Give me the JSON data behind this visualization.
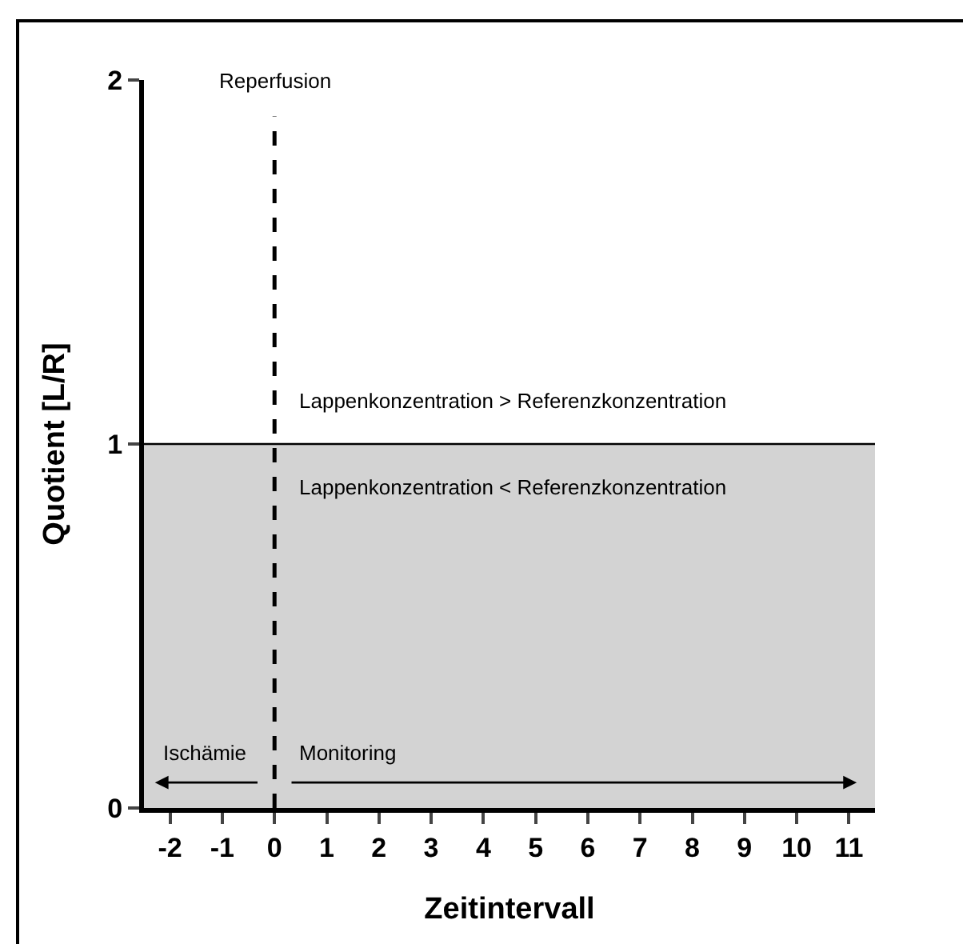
{
  "chart_data": {
    "type": "area",
    "xlabel": "Zeitintervall",
    "ylabel": "Quotient [L/R]",
    "xlim": [
      -2.5,
      11.5
    ],
    "xticks": [
      -2,
      -1,
      0,
      1,
      2,
      3,
      4,
      5,
      6,
      7,
      8,
      9,
      10,
      11
    ],
    "ylim": [
      0,
      2
    ],
    "yticks": [
      0,
      1,
      2
    ],
    "grid": false,
    "x": [
      -2.5,
      11.5
    ],
    "series": [
      {
        "color": "#d3d3d3",
        "values": [
          1,
          1
        ]
      }
    ],
    "ref_lines": [
      {
        "axis": "x",
        "value": 0,
        "label": "Reperfusion",
        "line_style": "dashed",
        "color": "#000000"
      }
    ],
    "annotations": [
      "Lappenkonzentration > Referenzkonzentration",
      "Lappenkonzentration < Referenzkonzentration",
      "Ischämie",
      "Monitoring"
    ]
  }
}
